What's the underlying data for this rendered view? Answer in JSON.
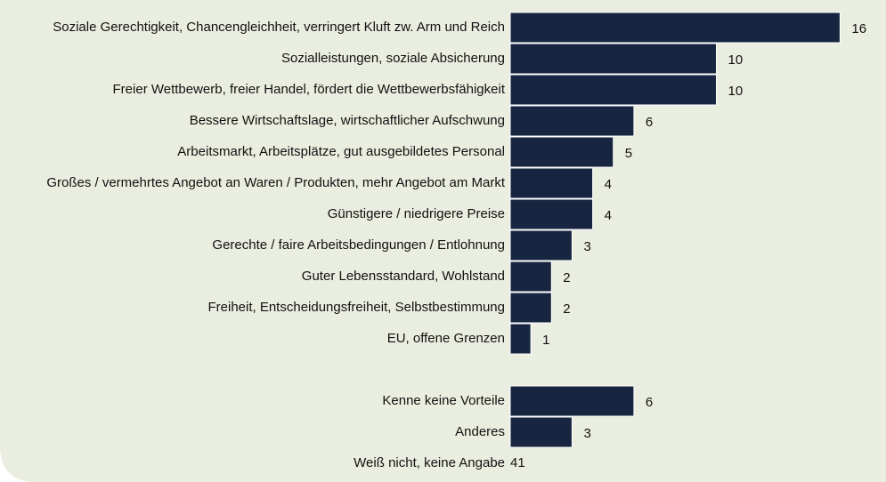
{
  "chart_data": {
    "type": "bar",
    "orientation": "horizontal",
    "color": "#172540",
    "categories": [
      "Soziale Gerechtigkeit, Chancengleichheit, verringert Kluft zw. Arm und Reich",
      "Sozialleistungen, soziale Absicherung",
      "Freier Wettbewerb, freier Handel, fördert die Wettbewerbsfähigkeit",
      "Bessere Wirtschaftslage, wirtschaftlicher Aufschwung",
      "Arbeitsmarkt, Arbeitsplätze, gut ausgebildetes Personal",
      "Großes / vermehrtes Angebot an Waren / Produkten, mehr Angebot am Markt",
      "Günstigere / niedrigere Preise",
      "Gerechte / faire Arbeitsbedingungen / Entlohnung",
      "Guter Lebensstandard, Wohlstand",
      "Freiheit, Entscheidungsfreiheit, Selbstbestimmung",
      "EU, offene Grenzen",
      null,
      "Kenne keine Vorteile",
      "Anderes"
    ],
    "values": [
      16,
      10,
      10,
      6,
      5,
      4,
      4,
      3,
      2,
      2,
      1,
      null,
      6,
      3
    ],
    "no_answer": {
      "label": "Weiß nicht, keine Angabe",
      "value": 41
    }
  }
}
